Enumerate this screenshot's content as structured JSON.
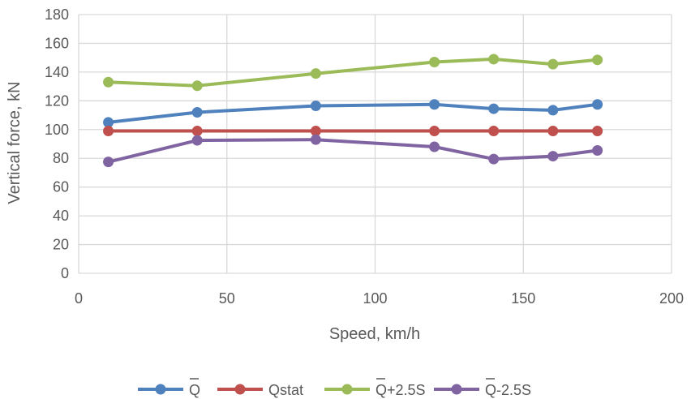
{
  "chart_data": {
    "type": "line",
    "title": "",
    "xlabel": "Speed,  km/h",
    "ylabel": "Vertical force, kN",
    "xlim": [
      0,
      200
    ],
    "ylim": [
      0,
      180
    ],
    "xticks": [
      0,
      50,
      100,
      150,
      200
    ],
    "yticks": [
      0,
      20,
      40,
      60,
      80,
      100,
      120,
      140,
      160,
      180
    ],
    "grid": true,
    "legend_position": "bottom",
    "x": [
      10,
      40,
      80,
      120,
      140,
      160,
      175
    ],
    "series": [
      {
        "name": "Q",
        "name_overline": true,
        "color": "#4f81bd",
        "values": [
          105,
          112,
          116.5,
          117.5,
          114.5,
          113.5,
          117.5
        ]
      },
      {
        "name": "Qstat",
        "name_overline": false,
        "color": "#c0504d",
        "values": [
          99,
          99,
          99,
          99,
          99,
          99,
          99
        ]
      },
      {
        "name": "Q+2.5S",
        "name_overline": true,
        "color": "#9bbb59",
        "values": [
          133,
          130.5,
          139,
          147,
          149,
          145.5,
          148.5
        ]
      },
      {
        "name": "Q-2.5S",
        "name_overline": true,
        "color": "#8064a2",
        "values": [
          77.5,
          92.5,
          93,
          88,
          79.5,
          81.5,
          85.5
        ]
      }
    ]
  }
}
